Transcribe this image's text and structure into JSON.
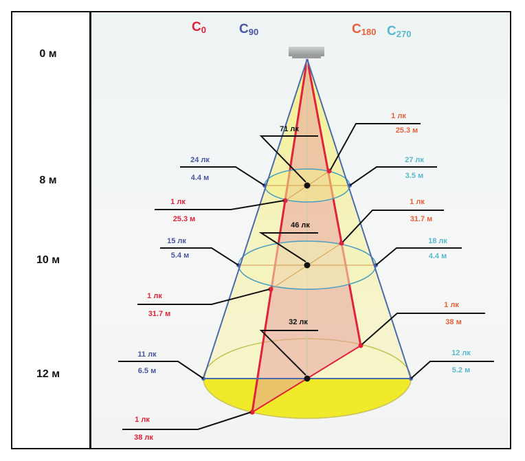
{
  "heights": [
    "0 м",
    "8 м",
    "10 м",
    "12 м"
  ],
  "planes": {
    "c0": {
      "letter": "C",
      "sub": "0",
      "color": "#e0223a"
    },
    "c90": {
      "letter": "C",
      "sub": "90",
      "color": "#4a55a0"
    },
    "c180": {
      "letter": "C",
      "sub": "180",
      "color": "#e8603a"
    },
    "c270": {
      "letter": "C",
      "sub": "270",
      "color": "#5ab8cc"
    }
  },
  "levels": [
    {
      "center": "71 лк",
      "c90": {
        "lux": "24 лк",
        "dist": "4.4 м"
      },
      "c270": {
        "lux": "27 лк",
        "dist": "3.5 м"
      },
      "c180": {
        "lux": "1 лк",
        "dist": "25.3 м"
      },
      "c0": {
        "lux": "1 лк",
        "dist": "25.3 м"
      }
    },
    {
      "center": "46 лк",
      "c90": {
        "lux": "15 лк",
        "dist": "5.4 м"
      },
      "c270": {
        "lux": "18 лк",
        "dist": "4.4 м"
      },
      "c180": {
        "lux": "1 лк",
        "dist": "31.7 м"
      },
      "c0": {
        "lux": "1 лк",
        "dist": "31.7 м"
      }
    },
    {
      "center": "32 лк",
      "c90": {
        "lux": "11 лк",
        "dist": "6.5 м"
      },
      "c270": {
        "lux": "12 лк",
        "dist": "5.2 м"
      },
      "c180": {
        "lux": "1 лк",
        "dist": "38 м"
      },
      "c0": {
        "lux": "1 лк",
        "dist": "38 лк"
      }
    }
  ]
}
